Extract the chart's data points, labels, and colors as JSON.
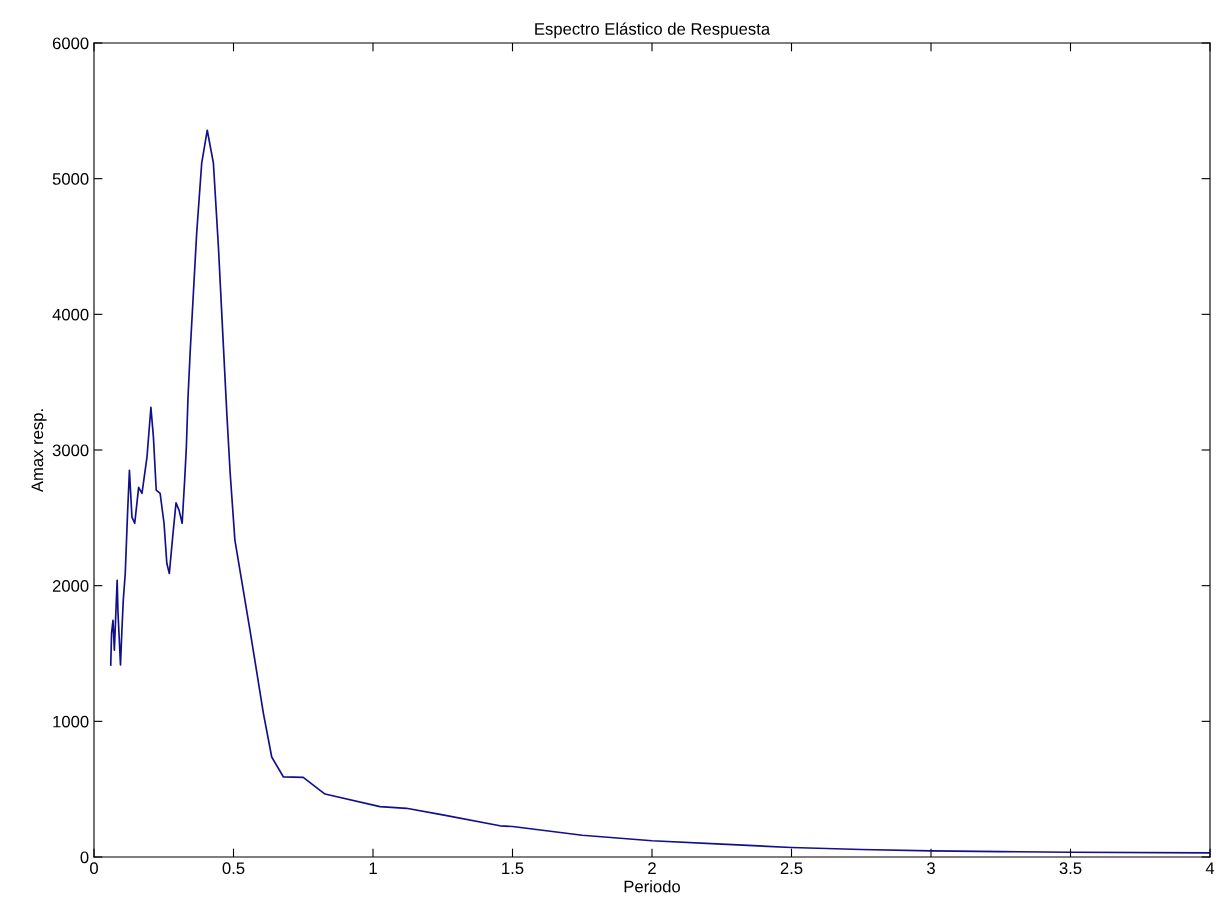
{
  "chart_data": {
    "type": "line",
    "title": "Espectro Elástico de Respuesta",
    "xlabel": "Periodo",
    "ylabel": "Amax resp.",
    "xlim": [
      0,
      4
    ],
    "ylim": [
      0,
      6000
    ],
    "xticks": [
      0,
      0.5,
      1,
      1.5,
      2,
      2.5,
      3,
      3.5,
      4
    ],
    "yticks": [
      0,
      1000,
      2000,
      3000,
      4000,
      5000,
      6000
    ],
    "grid": false,
    "series": [
      {
        "color": "#10108a",
        "x": [
          0.06,
          0.063,
          0.068,
          0.073,
          0.083,
          0.086,
          0.095,
          0.1,
          0.105,
          0.112,
          0.12,
          0.127,
          0.136,
          0.146,
          0.16,
          0.172,
          0.19,
          0.204,
          0.213,
          0.223,
          0.237,
          0.251,
          0.261,
          0.27,
          0.282,
          0.294,
          0.305,
          0.316,
          0.325,
          0.331,
          0.337,
          0.345,
          0.368,
          0.386,
          0.406,
          0.428,
          0.446,
          0.464,
          0.476,
          0.488,
          0.505,
          0.559,
          0.607,
          0.637,
          0.679,
          0.75,
          0.786,
          0.828,
          1.025,
          1.12,
          1.25,
          1.455,
          1.5,
          1.75,
          2.0,
          2.25,
          2.5,
          2.75,
          3.0,
          3.25,
          3.5,
          4.0
        ],
        "values": [
          1415,
          1650,
          1745,
          1525,
          2040,
          1800,
          1415,
          1670,
          1895,
          2090,
          2520,
          2850,
          2505,
          2460,
          2725,
          2680,
          2950,
          3315,
          3095,
          2705,
          2680,
          2460,
          2165,
          2090,
          2360,
          2610,
          2555,
          2460,
          2780,
          3020,
          3390,
          3735,
          4598,
          5114,
          5357,
          5114,
          4495,
          3758,
          3272,
          2830,
          2336,
          1673,
          1061,
          737,
          590,
          587,
          530,
          464,
          371,
          359,
          310,
          230,
          225,
          160,
          120,
          95,
          70,
          55,
          45,
          40,
          35,
          30
        ]
      }
    ]
  }
}
